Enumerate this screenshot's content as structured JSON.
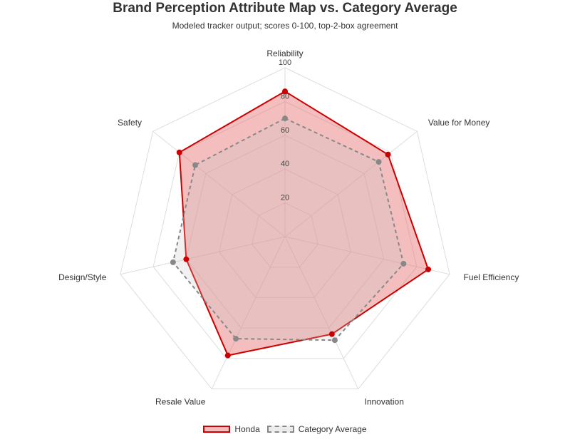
{
  "chart_data": {
    "type": "radar",
    "title": "Brand Perception Attribute Map vs. Category Average",
    "subtitle": "Modeled tracker output; scores 0-100, top-2-box agreement",
    "categories": [
      "Reliability",
      "Value for Money",
      "Fuel Efficiency",
      "Innovation",
      "Resale Value",
      "Design/Style",
      "Safety"
    ],
    "rlim": [
      0,
      100
    ],
    "ticks": [
      "20",
      "40",
      "60",
      "80",
      "100"
    ],
    "series": [
      {
        "name": "Honda",
        "values": [
          86,
          78,
          87,
          64,
          78,
          60,
          80
        ],
        "color": "#cc0000",
        "fill": "#e66e6e",
        "style": "solid"
      },
      {
        "name": "Category Average",
        "values": [
          70,
          71,
          72,
          68,
          67,
          68,
          68
        ],
        "color": "#888888",
        "fill": "#c8c8c8",
        "style": "dashed"
      }
    ],
    "legend": "bottom-center",
    "grid": true
  }
}
